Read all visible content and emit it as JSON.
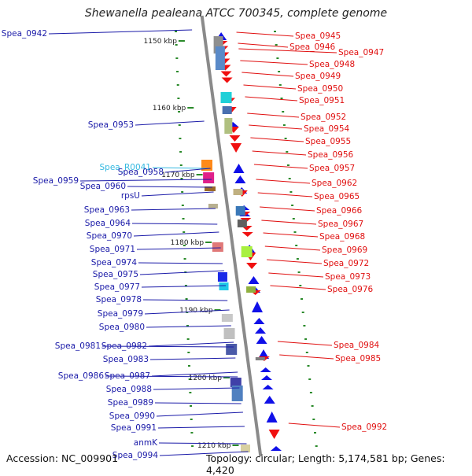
{
  "title": "Shewanella pealeana ATCC 700345, complete genome",
  "footer": {
    "accession": "Accession: NC_009901",
    "summary": "Topology: circular; Length: 5,174,581 bp; Genes: 4,420"
  },
  "colors": {
    "axis": "#8a8a8a",
    "forward_label": "#1a1aa8",
    "reverse_label": "#e01010",
    "rna_label": "#33b8e0",
    "forward_gene": "#1010e8",
    "reverse_gene": "#f01010",
    "tick": "#2a8a2a"
  },
  "kbp_marks": [
    "1150 kbp",
    "1160 kbp",
    "1170 kbp",
    "1180 kbp",
    "1190 kbp",
    "1200 kbp",
    "1210 kbp"
  ],
  "left_labels": [
    "Spea_0942",
    "Spea_0953",
    "Spea_R0041",
    "Spea_0958",
    "Spea_0959",
    "Spea_0960",
    "rpsU",
    "Spea_0963",
    "Spea_0964",
    "Spea_0970",
    "Spea_0971",
    "Spea_0974",
    "Spea_0975",
    "Spea_0977",
    "Spea_0978",
    "Spea_0979",
    "Spea_0980",
    "Spea_0981",
    "Spea_0982",
    "Spea_0983",
    "Spea_0986",
    "Spea_0987",
    "Spea_0988",
    "Spea_0989",
    "Spea_0990",
    "Spea_0991",
    "anmK",
    "Spea_0994"
  ],
  "right_labels": [
    "Spea_0945",
    "Spea_0946",
    "Spea_0947",
    "Spea_0948",
    "Spea_0949",
    "Spea_0950",
    "Spea_0951",
    "Spea_0952",
    "Spea_0954",
    "Spea_0955",
    "Spea_0956",
    "Spea_0957",
    "Spea_0962",
    "Spea_0965",
    "Spea_0966",
    "Spea_0967",
    "Spea_0968",
    "Spea_0969",
    "Spea_0972",
    "Spea_0973",
    "Spea_0976",
    "Spea_0984",
    "Spea_0985",
    "Spea_0992"
  ]
}
